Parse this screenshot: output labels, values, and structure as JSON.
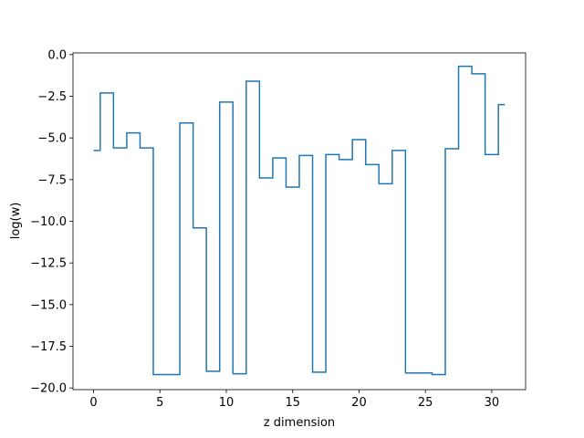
{
  "chart_data": {
    "type": "line",
    "drawstyle": "steps-mid",
    "title": "",
    "xlabel": "z dimension",
    "ylabel": "log(w)",
    "xlim": [
      -1.55,
      32.55
    ],
    "ylim": [
      -20.1,
      0.1
    ],
    "xticks": [
      0,
      5,
      10,
      15,
      20,
      25,
      30
    ],
    "xtick_labels": [
      "0",
      "5",
      "10",
      "15",
      "20",
      "25",
      "30"
    ],
    "yticks": [
      0.0,
      -2.5,
      -5.0,
      -7.5,
      -10.0,
      -12.5,
      -15.0,
      -17.5,
      -20.0
    ],
    "ytick_labels": [
      "0.0",
      "−2.5",
      "−5.0",
      "−7.5",
      "−10.0",
      "−12.5",
      "−15.0",
      "−17.5",
      "−20.0"
    ],
    "grid": false,
    "legend": "none",
    "series": [
      {
        "color": "#1f77b4",
        "x": [
          0,
          1,
          2,
          3,
          4,
          5,
          6,
          7,
          8,
          9,
          10,
          11,
          12,
          13,
          14,
          15,
          16,
          17,
          18,
          19,
          20,
          21,
          22,
          23,
          24,
          25,
          26,
          27,
          28,
          29,
          30,
          31
        ],
        "y": [
          -5.75,
          -2.3,
          -5.6,
          -4.7,
          -5.6,
          -19.2,
          -19.2,
          -4.1,
          -10.4,
          -19.0,
          -2.85,
          -19.15,
          -1.6,
          -7.4,
          -6.2,
          -7.95,
          -6.05,
          -19.05,
          -6.0,
          -6.3,
          -5.1,
          -6.6,
          -7.75,
          -5.75,
          -19.1,
          -19.1,
          -19.2,
          -5.65,
          -0.7,
          -1.15,
          -6.0,
          -3.0
        ]
      }
    ]
  }
}
